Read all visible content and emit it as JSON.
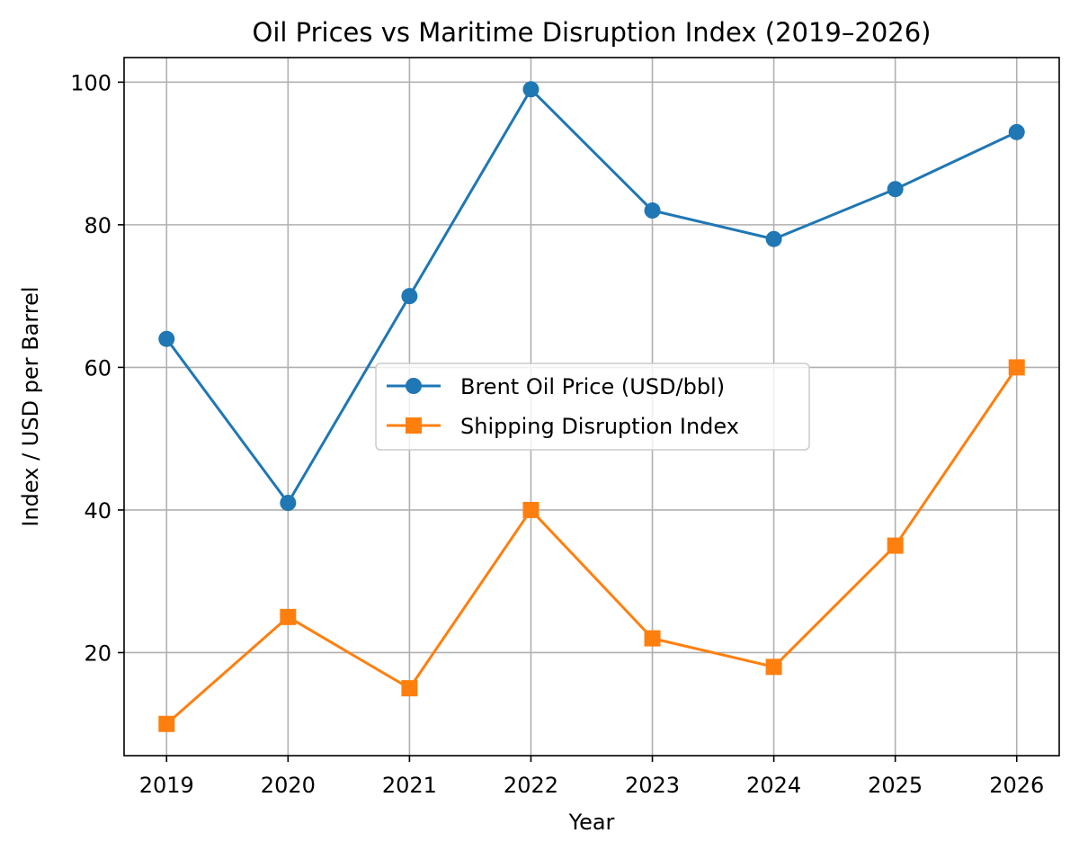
{
  "chart_data": {
    "type": "line",
    "title": "Oil Prices vs Maritime Disruption Index (2019–2026)",
    "xlabel": "Year",
    "ylabel": "Index / USD per Barrel",
    "x": [
      2019,
      2020,
      2021,
      2022,
      2023,
      2024,
      2025,
      2026
    ],
    "x_tick_labels": [
      "2019",
      "2020",
      "2021",
      "2022",
      "2023",
      "2024",
      "2025",
      "2026"
    ],
    "y_ticks": [
      20,
      40,
      60,
      80,
      100
    ],
    "y_tick_labels": [
      "20",
      "40",
      "60",
      "80",
      "100"
    ],
    "xlim": [
      2018.65,
      2026.35
    ],
    "ylim": [
      5.55,
      103.45
    ],
    "grid": true,
    "legend_position": "center",
    "series": [
      {
        "name": "Brent Oil Price (USD/bbl)",
        "values": [
          64,
          41,
          70,
          99,
          82,
          78,
          85,
          93
        ],
        "color": "#1f77b4",
        "marker": "circle"
      },
      {
        "name": "Shipping Disruption Index",
        "values": [
          10,
          25,
          15,
          40,
          22,
          18,
          35,
          60
        ],
        "color": "#ff7f0e",
        "marker": "square"
      }
    ]
  }
}
